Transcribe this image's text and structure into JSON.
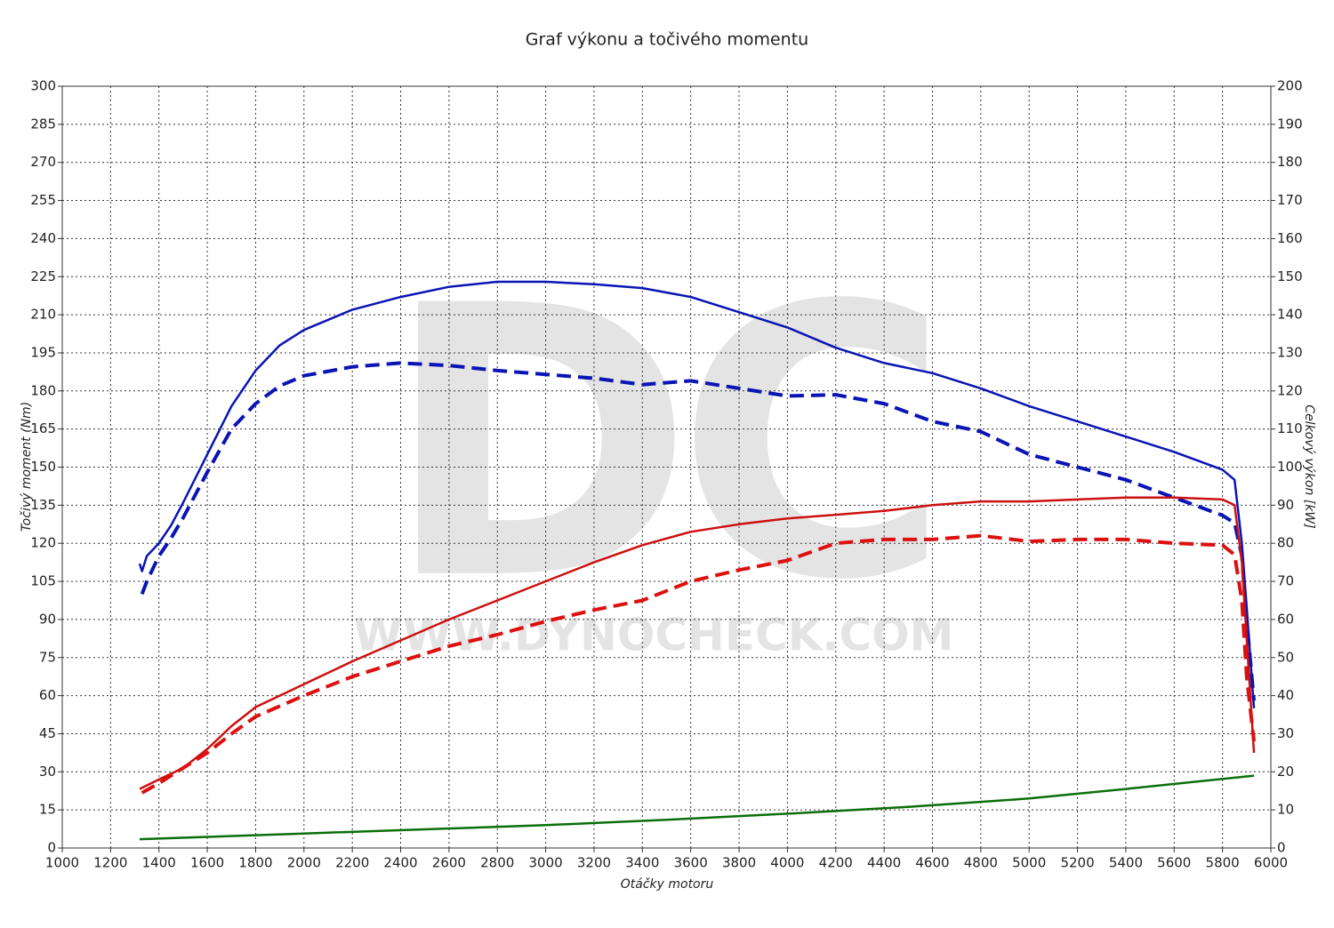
{
  "chart_data": {
    "type": "line",
    "title": "Graf výkonu a točivého momentu",
    "xlabel": "Otáčky motoru",
    "ylabel": "Točivý moment (Nm)",
    "y2label": "Celkový výkon [kW]",
    "watermark": [
      "DC",
      "WWW.DYNOCHECK.COM"
    ],
    "xlim": [
      1000,
      6000
    ],
    "xticks": [
      1000,
      1200,
      1400,
      1600,
      1800,
      2000,
      2200,
      2400,
      2600,
      2800,
      3000,
      3200,
      3400,
      3600,
      3800,
      4000,
      4200,
      4400,
      4600,
      4800,
      5000,
      5200,
      5400,
      5600,
      5800,
      6000
    ],
    "ylim": [
      0,
      300
    ],
    "yticks": [
      0,
      15,
      30,
      45,
      60,
      75,
      90,
      105,
      120,
      135,
      150,
      165,
      180,
      195,
      210,
      225,
      240,
      255,
      270,
      285,
      300
    ],
    "y2lim": [
      0,
      200
    ],
    "y2ticks": [
      0,
      10,
      20,
      30,
      40,
      50,
      60,
      70,
      80,
      90,
      100,
      110,
      120,
      130,
      140,
      150,
      160,
      170,
      180,
      190,
      200
    ],
    "grid": true,
    "series": [
      {
        "color": "#0a14b4",
        "dashed": false,
        "axis": "y",
        "x": [
          1320,
          1330,
          1350,
          1400,
          1450,
          1500,
          1600,
          1700,
          1800,
          1900,
          2000,
          2200,
          2400,
          2600,
          2800,
          3000,
          3200,
          3400,
          3600,
          3800,
          4000,
          4200,
          4400,
          4600,
          4800,
          5000,
          5200,
          5400,
          5600,
          5800,
          5850,
          5880,
          5900,
          5930
        ],
        "values": [
          112,
          109,
          115,
          120,
          127,
          136,
          155,
          174,
          188,
          198,
          204,
          212,
          217,
          221,
          223,
          223,
          222,
          220.5,
          217,
          211,
          205,
          197,
          191,
          187,
          181,
          174,
          168,
          162,
          156,
          149,
          145,
          120,
          95,
          55
        ]
      },
      {
        "color": "#0a14b4",
        "dashed": true,
        "axis": "y",
        "x": [
          1330,
          1350,
          1400,
          1450,
          1500,
          1600,
          1700,
          1800,
          1900,
          2000,
          2200,
          2400,
          2600,
          2800,
          3000,
          3200,
          3400,
          3600,
          3800,
          4000,
          4200,
          4400,
          4600,
          4800,
          5000,
          5200,
          5400,
          5600,
          5800,
          5850,
          5880,
          5900,
          5930
        ],
        "values": [
          100,
          105,
          115,
          122,
          130,
          148,
          165,
          175,
          182,
          186,
          189.5,
          191,
          190,
          188,
          186.5,
          185,
          182.5,
          184,
          181,
          178,
          178.5,
          175,
          168,
          164,
          155,
          150,
          145,
          138,
          131,
          128,
          115,
          90,
          58
        ]
      },
      {
        "color": "#cc1010",
        "dashed": false,
        "axis": "y2",
        "x": [
          1320,
          1400,
          1500,
          1600,
          1700,
          1800,
          2000,
          2200,
          2400,
          2600,
          2800,
          3000,
          3200,
          3400,
          3600,
          3800,
          4000,
          4200,
          4400,
          4600,
          4800,
          5000,
          5200,
          5400,
          5600,
          5800,
          5850,
          5880,
          5900,
          5930
        ],
        "values": [
          15.5,
          18,
          21,
          26,
          32,
          37,
          43,
          49,
          54.5,
          60,
          65,
          70,
          75,
          79.5,
          83,
          85,
          86.5,
          87.5,
          88.5,
          90,
          91,
          91,
          91.5,
          92,
          92,
          91.5,
          90,
          75,
          55,
          25
        ]
      },
      {
        "color": "#dd1010",
        "dashed": true,
        "axis": "y2",
        "x": [
          1330,
          1400,
          1500,
          1600,
          1700,
          1800,
          2000,
          2200,
          2400,
          2600,
          2800,
          3000,
          3200,
          3400,
          3600,
          3800,
          4000,
          4200,
          4400,
          4600,
          4800,
          5000,
          5200,
          5400,
          5600,
          5800,
          5850,
          5880,
          5900,
          5930
        ],
        "values": [
          14.5,
          17,
          21,
          25,
          30,
          34.5,
          40,
          45,
          49,
          53,
          56,
          59.5,
          62.5,
          65,
          70,
          73,
          75.5,
          80,
          81,
          81,
          82,
          80.5,
          81,
          81,
          80,
          79.5,
          77,
          65,
          45,
          28
        ]
      },
      {
        "color": "#0a6e0a",
        "dashed": false,
        "axis": "y2",
        "x": [
          1320,
          2000,
          2500,
          3000,
          3500,
          4000,
          4500,
          5000,
          5400,
          5930
        ],
        "values": [
          2.3,
          3.8,
          4.9,
          6,
          7.4,
          9,
          10.8,
          13,
          15.5,
          19
        ]
      }
    ]
  }
}
